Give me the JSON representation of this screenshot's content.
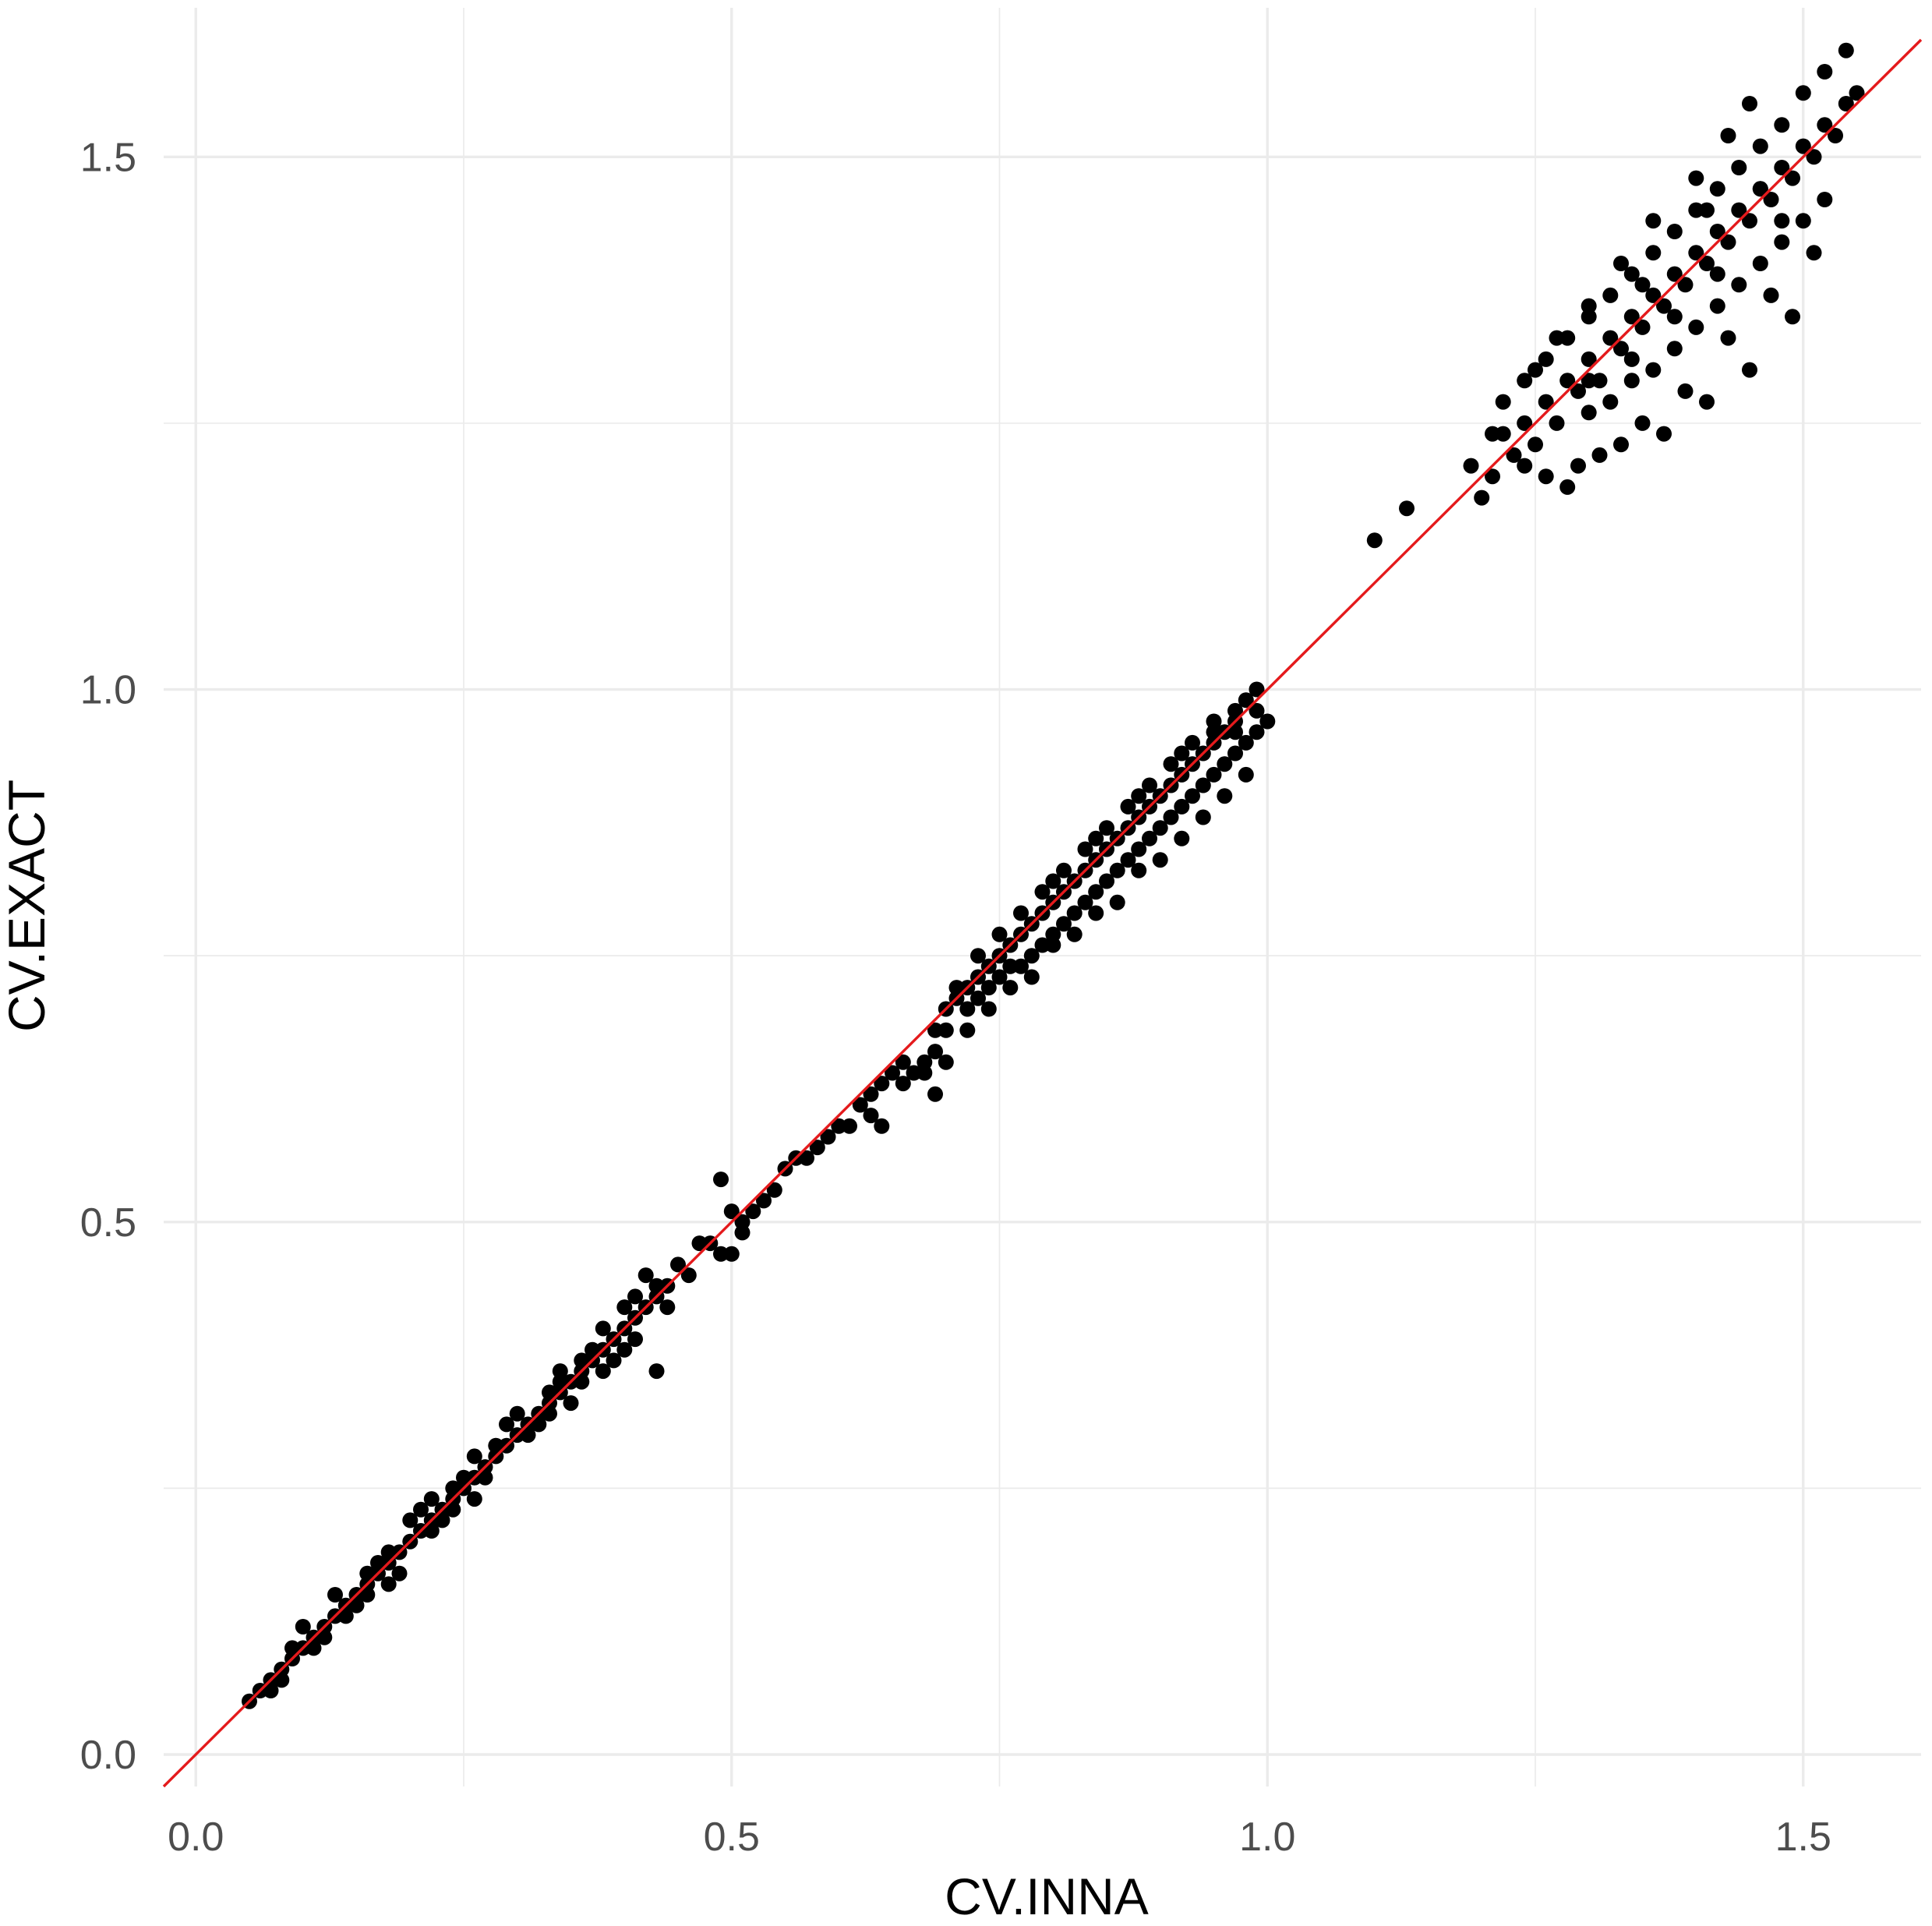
{
  "chart_data": {
    "type": "scatter",
    "xlabel": "CV.INNA",
    "ylabel": "CV.EXACT",
    "xlim": [
      -0.03,
      1.61
    ],
    "ylim": [
      -0.03,
      1.64
    ],
    "x_ticks": [
      0.0,
      0.5,
      1.0,
      1.5
    ],
    "x_tick_labels": [
      "0.0",
      "0.5",
      "1.0",
      "1.5"
    ],
    "y_ticks": [
      0.0,
      0.5,
      1.0,
      1.5
    ],
    "y_tick_labels": [
      "0.0",
      "0.5",
      "1.0",
      "1.5"
    ],
    "grid": true,
    "point_color": "#000000",
    "reference_line": {
      "type": "identity",
      "intercept": 0,
      "slope": 1,
      "color": "#e41a1c"
    },
    "series": [
      {
        "points": [
          [
            0.05,
            0.05
          ],
          [
            0.06,
            0.06
          ],
          [
            0.07,
            0.07
          ],
          [
            0.08,
            0.08
          ],
          [
            0.09,
            0.09
          ],
          [
            0.1,
            0.1
          ],
          [
            0.11,
            0.11
          ],
          [
            0.12,
            0.12
          ],
          [
            0.13,
            0.13
          ],
          [
            0.14,
            0.14
          ],
          [
            0.15,
            0.15
          ],
          [
            0.16,
            0.16
          ],
          [
            0.17,
            0.17
          ],
          [
            0.18,
            0.18
          ],
          [
            0.19,
            0.19
          ],
          [
            0.2,
            0.2
          ],
          [
            0.21,
            0.21
          ],
          [
            0.22,
            0.22
          ],
          [
            0.23,
            0.23
          ],
          [
            0.24,
            0.24
          ],
          [
            0.25,
            0.25
          ],
          [
            0.26,
            0.26
          ],
          [
            0.27,
            0.27
          ],
          [
            0.28,
            0.28
          ],
          [
            0.29,
            0.29
          ],
          [
            0.3,
            0.3
          ],
          [
            0.31,
            0.31
          ],
          [
            0.32,
            0.32
          ],
          [
            0.33,
            0.33
          ],
          [
            0.34,
            0.34
          ],
          [
            0.35,
            0.35
          ],
          [
            0.36,
            0.36
          ],
          [
            0.37,
            0.37
          ],
          [
            0.38,
            0.38
          ],
          [
            0.39,
            0.39
          ],
          [
            0.4,
            0.4
          ],
          [
            0.41,
            0.41
          ],
          [
            0.42,
            0.42
          ],
          [
            0.43,
            0.43
          ],
          [
            0.44,
            0.44
          ],
          [
            0.07,
            0.06
          ],
          [
            0.09,
            0.1
          ],
          [
            0.11,
            0.1
          ],
          [
            0.13,
            0.15
          ],
          [
            0.15,
            0.14
          ],
          [
            0.17,
            0.18
          ],
          [
            0.19,
            0.17
          ],
          [
            0.21,
            0.23
          ],
          [
            0.23,
            0.22
          ],
          [
            0.25,
            0.26
          ],
          [
            0.27,
            0.26
          ],
          [
            0.29,
            0.31
          ],
          [
            0.31,
            0.3
          ],
          [
            0.33,
            0.34
          ],
          [
            0.35,
            0.33
          ],
          [
            0.37,
            0.38
          ],
          [
            0.39,
            0.37
          ],
          [
            0.41,
            0.43
          ],
          [
            0.43,
            0.44
          ],
          [
            0.12,
            0.11
          ],
          [
            0.16,
            0.17
          ],
          [
            0.18,
            0.19
          ],
          [
            0.22,
            0.21
          ],
          [
            0.24,
            0.25
          ],
          [
            0.26,
            0.24
          ],
          [
            0.28,
            0.29
          ],
          [
            0.32,
            0.31
          ],
          [
            0.34,
            0.36
          ],
          [
            0.36,
            0.35
          ],
          [
            0.38,
            0.36
          ],
          [
            0.1,
            0.12
          ],
          [
            0.14,
            0.13
          ],
          [
            0.2,
            0.22
          ],
          [
            0.3,
            0.32
          ],
          [
            0.4,
            0.38
          ],
          [
            0.42,
            0.45
          ],
          [
            0.44,
            0.42
          ],
          [
            0.18,
            0.16
          ],
          [
            0.26,
            0.28
          ],
          [
            0.36,
            0.37
          ],
          [
            0.43,
            0.36
          ],
          [
            0.41,
            0.39
          ],
          [
            0.4,
            0.42
          ],
          [
            0.38,
            0.4
          ],
          [
            0.34,
            0.35
          ],
          [
            0.33,
            0.32
          ],
          [
            0.24,
            0.23
          ],
          [
            0.22,
            0.24
          ],
          [
            0.16,
            0.15
          ],
          [
            0.08,
            0.07
          ],
          [
            0.46,
            0.45
          ],
          [
            0.48,
            0.48
          ],
          [
            0.49,
            0.47
          ],
          [
            0.5,
            0.51
          ],
          [
            0.52,
            0.51
          ],
          [
            0.51,
            0.5
          ],
          [
            0.53,
            0.52
          ],
          [
            0.54,
            0.53
          ],
          [
            0.55,
            0.55
          ],
          [
            0.56,
            0.56
          ],
          [
            0.57,
            0.56
          ],
          [
            0.58,
            0.57
          ],
          [
            0.59,
            0.58
          ],
          [
            0.6,
            0.59
          ],
          [
            0.61,
            0.59
          ],
          [
            0.62,
            0.61
          ],
          [
            0.63,
            0.62
          ],
          [
            0.64,
            0.63
          ],
          [
            0.65,
            0.64
          ],
          [
            0.66,
            0.65
          ],
          [
            0.49,
            0.54
          ],
          [
            0.5,
            0.47
          ],
          [
            0.51,
            0.49
          ],
          [
            0.47,
            0.48
          ],
          [
            0.45,
            0.46
          ],
          [
            0.63,
            0.6
          ],
          [
            0.64,
            0.59
          ],
          [
            0.66,
            0.63
          ],
          [
            0.69,
            0.62
          ],
          [
            0.67,
            0.64
          ],
          [
            0.68,
            0.65
          ],
          [
            0.69,
            0.68
          ],
          [
            0.7,
            0.7
          ],
          [
            0.71,
            0.71
          ],
          [
            0.72,
            0.72
          ],
          [
            0.73,
            0.73
          ],
          [
            0.74,
            0.74
          ],
          [
            0.75,
            0.75
          ],
          [
            0.76,
            0.76
          ],
          [
            0.77,
            0.77
          ],
          [
            0.78,
            0.78
          ],
          [
            0.79,
            0.79
          ],
          [
            0.8,
            0.8
          ],
          [
            0.81,
            0.81
          ],
          [
            0.82,
            0.82
          ],
          [
            0.83,
            0.83
          ],
          [
            0.84,
            0.84
          ],
          [
            0.85,
            0.85
          ],
          [
            0.86,
            0.86
          ],
          [
            0.87,
            0.87
          ],
          [
            0.88,
            0.88
          ],
          [
            0.89,
            0.89
          ],
          [
            0.9,
            0.9
          ],
          [
            0.91,
            0.91
          ],
          [
            0.92,
            0.92
          ],
          [
            0.93,
            0.93
          ],
          [
            0.94,
            0.94
          ],
          [
            0.95,
            0.95
          ],
          [
            0.96,
            0.96
          ],
          [
            0.97,
            0.97
          ],
          [
            0.7,
            0.68
          ],
          [
            0.72,
            0.7
          ],
          [
            0.74,
            0.72
          ],
          [
            0.76,
            0.74
          ],
          [
            0.78,
            0.75
          ],
          [
            0.8,
            0.77
          ],
          [
            0.82,
            0.79
          ],
          [
            0.84,
            0.81
          ],
          [
            0.86,
            0.83
          ],
          [
            0.88,
            0.85
          ],
          [
            0.9,
            0.87
          ],
          [
            0.92,
            0.89
          ],
          [
            0.94,
            0.91
          ],
          [
            0.96,
            0.93
          ],
          [
            0.98,
            0.95
          ],
          [
            0.73,
            0.71
          ],
          [
            0.75,
            0.73
          ],
          [
            0.77,
            0.74
          ],
          [
            0.79,
            0.76
          ],
          [
            0.81,
            0.78
          ],
          [
            0.83,
            0.8
          ],
          [
            0.85,
            0.82
          ],
          [
            0.87,
            0.84
          ],
          [
            0.89,
            0.86
          ],
          [
            0.91,
            0.88
          ],
          [
            0.93,
            0.9
          ],
          [
            0.95,
            0.92
          ],
          [
            0.97,
            0.94
          ],
          [
            0.99,
            0.96
          ],
          [
            0.71,
            0.72
          ],
          [
            0.75,
            0.77
          ],
          [
            0.79,
            0.81
          ],
          [
            0.83,
            0.85
          ],
          [
            0.87,
            0.89
          ],
          [
            0.91,
            0.93
          ],
          [
            0.95,
            0.97
          ],
          [
            0.97,
            0.98
          ],
          [
            0.99,
            1.0
          ],
          [
            0.93,
            0.95
          ],
          [
            0.89,
            0.91
          ],
          [
            0.85,
            0.87
          ],
          [
            0.81,
            0.83
          ],
          [
            0.77,
            0.79
          ],
          [
            0.73,
            0.75
          ],
          [
            0.69,
            0.66
          ],
          [
            0.68,
            0.64
          ],
          [
            0.74,
            0.7
          ],
          [
            0.78,
            0.73
          ],
          [
            0.82,
            0.77
          ],
          [
            0.86,
            0.8
          ],
          [
            0.9,
            0.84
          ],
          [
            0.94,
            0.88
          ],
          [
            0.96,
            0.9
          ],
          [
            0.98,
            0.92
          ],
          [
            0.92,
            0.86
          ],
          [
            0.88,
            0.83
          ],
          [
            0.84,
            0.79
          ],
          [
            0.8,
            0.76
          ],
          [
            0.76,
            0.72
          ],
          [
            0.72,
            0.68
          ],
          [
            0.7,
            0.65
          ],
          [
            1.0,
            0.97
          ],
          [
            0.99,
            0.98
          ],
          [
            0.98,
            0.99
          ],
          [
            0.97,
            0.96
          ],
          [
            0.95,
            0.96
          ],
          [
            0.92,
            0.94
          ],
          [
            0.88,
            0.9
          ],
          [
            0.84,
            0.86
          ],
          [
            0.8,
            0.82
          ],
          [
            1.1,
            1.14
          ],
          [
            1.13,
            1.17
          ],
          [
            1.19,
            1.21
          ],
          [
            1.2,
            1.18
          ],
          [
            1.21,
            1.2
          ],
          [
            1.22,
            1.24
          ],
          [
            1.23,
            1.22
          ],
          [
            1.24,
            1.25
          ],
          [
            1.25,
            1.23
          ],
          [
            1.26,
            1.27
          ],
          [
            1.27,
            1.25
          ],
          [
            1.28,
            1.29
          ],
          [
            1.29,
            1.28
          ],
          [
            1.3,
            1.31
          ],
          [
            1.31,
            1.29
          ],
          [
            1.32,
            1.33
          ],
          [
            1.33,
            1.32
          ],
          [
            1.34,
            1.35
          ],
          [
            1.35,
            1.34
          ],
          [
            1.36,
            1.37
          ],
          [
            1.37,
            1.36
          ],
          [
            1.38,
            1.39
          ],
          [
            1.39,
            1.38
          ],
          [
            1.4,
            1.41
          ],
          [
            1.41,
            1.4
          ],
          [
            1.42,
            1.43
          ],
          [
            1.43,
            1.42
          ],
          [
            1.44,
            1.45
          ],
          [
            1.45,
            1.44
          ],
          [
            1.46,
            1.47
          ],
          [
            1.47,
            1.46
          ],
          [
            1.48,
            1.49
          ],
          [
            1.49,
            1.48
          ],
          [
            1.5,
            1.51
          ],
          [
            1.51,
            1.5
          ],
          [
            1.52,
            1.53
          ],
          [
            1.53,
            1.52
          ],
          [
            1.54,
            1.55
          ],
          [
            1.55,
            1.56
          ],
          [
            1.24,
            1.29
          ],
          [
            1.26,
            1.31
          ],
          [
            1.28,
            1.33
          ],
          [
            1.3,
            1.35
          ],
          [
            1.32,
            1.37
          ],
          [
            1.34,
            1.39
          ],
          [
            1.36,
            1.41
          ],
          [
            1.38,
            1.43
          ],
          [
            1.4,
            1.45
          ],
          [
            1.42,
            1.47
          ],
          [
            1.44,
            1.49
          ],
          [
            1.46,
            1.51
          ],
          [
            1.48,
            1.53
          ],
          [
            1.3,
            1.26
          ],
          [
            1.32,
            1.27
          ],
          [
            1.34,
            1.29
          ],
          [
            1.36,
            1.3
          ],
          [
            1.38,
            1.32
          ],
          [
            1.4,
            1.34
          ],
          [
            1.42,
            1.36
          ],
          [
            1.44,
            1.38
          ],
          [
            1.46,
            1.4
          ],
          [
            1.48,
            1.42
          ],
          [
            1.5,
            1.44
          ],
          [
            1.52,
            1.46
          ],
          [
            1.29,
            1.21
          ],
          [
            1.33,
            1.23
          ],
          [
            1.37,
            1.24
          ],
          [
            1.41,
            1.27
          ],
          [
            1.45,
            1.3
          ],
          [
            1.49,
            1.35
          ],
          [
            1.26,
            1.2
          ],
          [
            1.28,
            1.19
          ],
          [
            1.31,
            1.22
          ],
          [
            1.35,
            1.25
          ],
          [
            1.39,
            1.28
          ],
          [
            1.43,
            1.33
          ],
          [
            1.47,
            1.37
          ],
          [
            1.51,
            1.41
          ],
          [
            1.22,
            1.27
          ],
          [
            1.25,
            1.3
          ],
          [
            1.27,
            1.33
          ],
          [
            1.3,
            1.36
          ],
          [
            1.33,
            1.4
          ],
          [
            1.36,
            1.44
          ],
          [
            1.4,
            1.48
          ],
          [
            1.43,
            1.52
          ],
          [
            1.45,
            1.55
          ],
          [
            1.5,
            1.56
          ],
          [
            1.52,
            1.58
          ],
          [
            1.54,
            1.6
          ],
          [
            1.46,
            1.47
          ],
          [
            1.38,
            1.35
          ],
          [
            1.34,
            1.31
          ],
          [
            1.3,
            1.29
          ],
          [
            1.42,
            1.39
          ],
          [
            1.48,
            1.44
          ],
          [
            1.24,
            1.21
          ],
          [
            1.21,
            1.24
          ],
          [
            1.35,
            1.38
          ],
          [
            1.41,
            1.45
          ]
        ]
      }
    ]
  }
}
